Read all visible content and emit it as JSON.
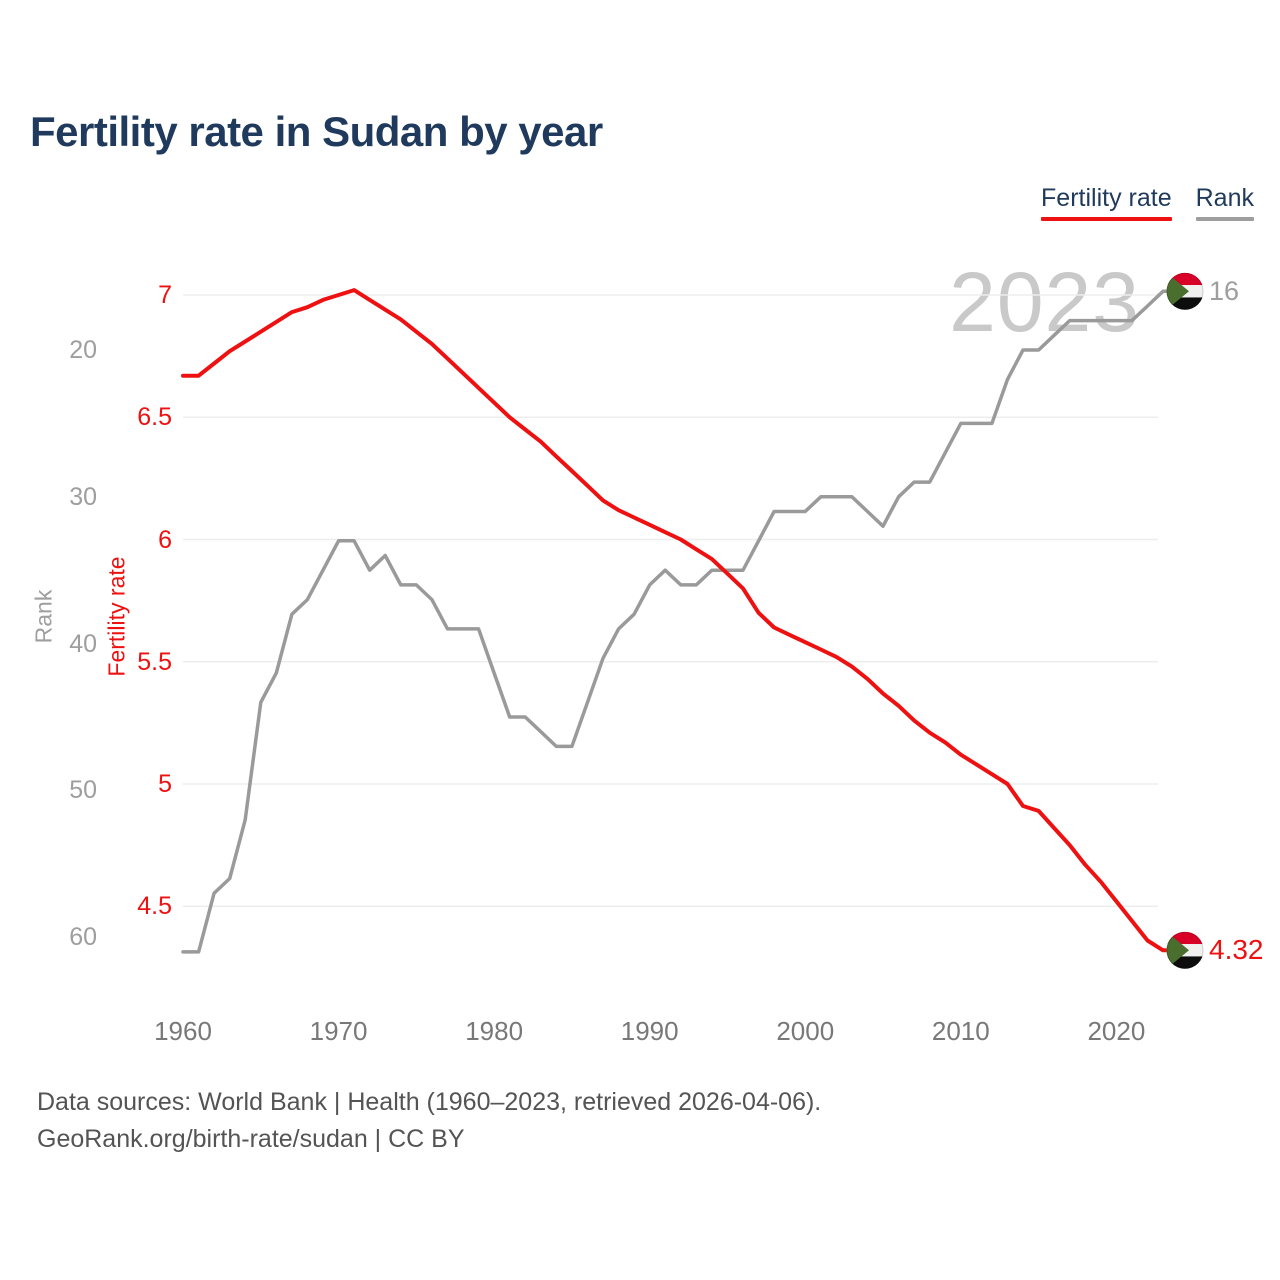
{
  "title": "Fertility rate in Sudan by year",
  "legend": {
    "fertility_label": "Fertility rate",
    "rank_label": "Rank"
  },
  "end_labels": {
    "fertility_value": "4.32",
    "rank_value": "16",
    "flag": "sudan-flag"
  },
  "footer": {
    "line1": "Data sources: World Bank | Health (1960–2023, retrieved 2026-04-06).",
    "line2": "GeoRank.org/birth-rate/sudan | CC BY"
  },
  "colors": {
    "fertility": "#ee1111",
    "rank_line": "#9a9a9a",
    "rank_text": "#9e9e9e",
    "year_text": "#787878",
    "title_text": "#1f3a5c",
    "watermark": "#c9c9c9",
    "gridline": "#ededed",
    "footer_text": "#545454",
    "flag_red": "#d80027",
    "flag_white": "#f0f0f0",
    "flag_black": "#0d0d0d",
    "flag_green": "#496e2d"
  },
  "chart_data": {
    "type": "line",
    "title": "Fertility rate in Sudan by year",
    "watermark": "2023",
    "grid": "horizontal",
    "legend_position": "top-right",
    "x": [
      1960,
      1961,
      1962,
      1963,
      1964,
      1965,
      1966,
      1967,
      1968,
      1969,
      1970,
      1971,
      1972,
      1973,
      1974,
      1975,
      1976,
      1977,
      1978,
      1979,
      1980,
      1981,
      1982,
      1983,
      1984,
      1985,
      1986,
      1987,
      1988,
      1989,
      1990,
      1991,
      1992,
      1993,
      1994,
      1995,
      1996,
      1997,
      1998,
      1999,
      2000,
      2001,
      2002,
      2003,
      2004,
      2005,
      2006,
      2007,
      2008,
      2009,
      2010,
      2011,
      2012,
      2013,
      2014,
      2015,
      2016,
      2017,
      2018,
      2019,
      2020,
      2021,
      2022,
      2023
    ],
    "series": [
      {
        "name": "Rank",
        "axis": "rank",
        "color": "#9a9a9a",
        "stroke_width": 3.5,
        "end_label": "16",
        "values": [
          61,
          61,
          57,
          56,
          52,
          44,
          42,
          38,
          37,
          35,
          33,
          33,
          35,
          34,
          36,
          36,
          37,
          39,
          39,
          39,
          42,
          45,
          45,
          46,
          47,
          47,
          44,
          41,
          39,
          38,
          36,
          35,
          36,
          36,
          35,
          35,
          35,
          33,
          31,
          31,
          31,
          30,
          30,
          30,
          31,
          32,
          30,
          29,
          29,
          27,
          25,
          25,
          25,
          22,
          20,
          20,
          19,
          18,
          18,
          18,
          18,
          18,
          17,
          16
        ]
      },
      {
        "name": "Fertility rate",
        "axis": "fertility",
        "color": "#ee1111",
        "stroke_width": 4,
        "end_label": "4.32",
        "values": [
          6.67,
          6.67,
          6.72,
          6.77,
          6.81,
          6.85,
          6.89,
          6.93,
          6.95,
          6.98,
          7.0,
          7.02,
          6.98,
          6.94,
          6.9,
          6.85,
          6.8,
          6.74,
          6.68,
          6.62,
          6.56,
          6.5,
          6.45,
          6.4,
          6.34,
          6.28,
          6.22,
          6.16,
          6.12,
          6.09,
          6.06,
          6.03,
          6.0,
          5.96,
          5.92,
          5.86,
          5.8,
          5.7,
          5.64,
          5.61,
          5.58,
          5.55,
          5.52,
          5.48,
          5.43,
          5.37,
          5.32,
          5.26,
          5.21,
          5.17,
          5.12,
          5.08,
          5.04,
          5.0,
          4.91,
          4.89,
          4.82,
          4.75,
          4.67,
          4.6,
          4.52,
          4.44,
          4.36,
          4.32
        ]
      }
    ],
    "axes": {
      "fertility": {
        "title": "Fertility rate",
        "ticks": [
          7,
          6.5,
          6,
          5.5,
          5,
          4.5
        ],
        "side": "left"
      },
      "rank": {
        "title": "Rank",
        "ticks": [
          20,
          30,
          40,
          50,
          60
        ],
        "side": "left",
        "inverted": true
      },
      "year": {
        "ticks": [
          1960,
          1970,
          1980,
          1990,
          2000,
          2010,
          2020
        ],
        "range": [
          1960,
          2023
        ]
      }
    }
  }
}
